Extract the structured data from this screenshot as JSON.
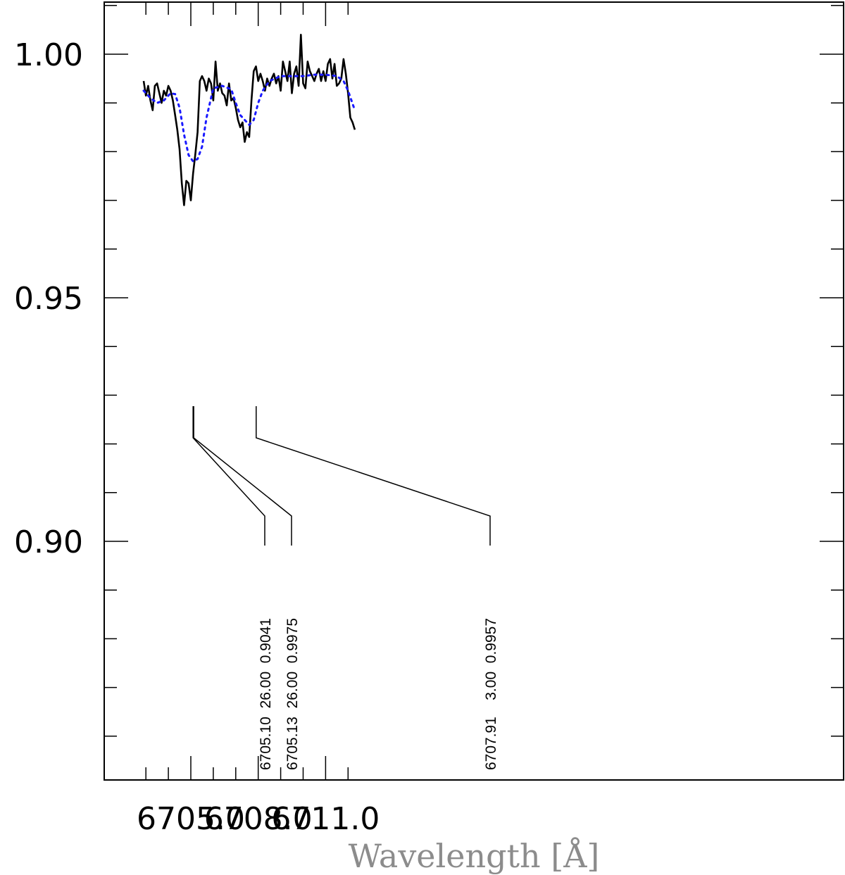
{
  "chart_data": {
    "type": "line",
    "title": "",
    "xlabel": "Wavelength [Å]",
    "ylabel": "",
    "xlim": [
      6702.6,
      6712.6
    ],
    "ylim": [
      0.854,
      1.0105
    ],
    "xticks": [
      6705.0,
      6708.0,
      6711.0
    ],
    "xtick_labels": [
      "6705.0",
      "6708.0",
      "6711.0"
    ],
    "yticks": [
      0.9,
      0.95,
      1.0
    ],
    "ytick_labels": [
      "0.90",
      "0.95",
      "1.00"
    ],
    "grid": false,
    "series": [
      {
        "style": "solid",
        "color": "#000000",
        "x": [
          6702.9,
          6703.0,
          6703.1,
          6703.2,
          6703.3,
          6703.4,
          6703.5,
          6703.6,
          6703.7,
          6703.8,
          6703.9,
          6704.0,
          6704.1,
          6704.2,
          6704.3,
          6704.4,
          6704.5,
          6704.6,
          6704.7,
          6704.8,
          6704.9,
          6705.0,
          6705.1,
          6705.2,
          6705.3,
          6705.4,
          6705.5,
          6705.6,
          6705.7,
          6705.8,
          6705.9,
          6706.0,
          6706.1,
          6706.2,
          6706.3,
          6706.4,
          6706.5,
          6706.6,
          6706.7,
          6706.8,
          6706.9,
          6707.0,
          6707.1,
          6707.2,
          6707.3,
          6707.4,
          6707.5,
          6707.6,
          6707.7,
          6707.8,
          6707.9,
          6708.0,
          6708.1,
          6708.2,
          6708.3,
          6708.4,
          6708.5,
          6708.6,
          6708.7,
          6708.8,
          6708.9,
          6709.0,
          6709.1,
          6709.2,
          6709.3,
          6709.4,
          6709.5,
          6709.6,
          6709.7,
          6709.8,
          6709.9,
          6710.0,
          6710.1,
          6710.2,
          6710.3,
          6710.4,
          6710.5,
          6710.6,
          6710.7,
          6710.8,
          6710.9,
          6711.0,
          6711.1,
          6711.2,
          6711.3,
          6711.4,
          6711.5,
          6711.6,
          6711.7,
          6711.8,
          6711.9,
          6712.0,
          6712.1,
          6712.2,
          6712.3
        ],
        "y": [
          0.9945,
          0.9915,
          0.9935,
          0.9905,
          0.9885,
          0.9935,
          0.994,
          0.992,
          0.99,
          0.9925,
          0.9915,
          0.9935,
          0.9925,
          0.9905,
          0.9875,
          0.9845,
          0.9805,
          0.9735,
          0.969,
          0.974,
          0.9735,
          0.97,
          0.9755,
          0.9795,
          0.984,
          0.9945,
          0.9955,
          0.9945,
          0.9925,
          0.995,
          0.994,
          0.9905,
          0.9985,
          0.9925,
          0.994,
          0.992,
          0.9915,
          0.9895,
          0.994,
          0.9905,
          0.991,
          0.989,
          0.9865,
          0.985,
          0.986,
          0.982,
          0.984,
          0.983,
          0.9905,
          0.9965,
          0.9975,
          0.9945,
          0.996,
          0.9945,
          0.9925,
          0.995,
          0.9935,
          0.995,
          0.996,
          0.994,
          0.9955,
          0.9925,
          0.9985,
          0.9965,
          0.9945,
          0.9985,
          0.992,
          0.996,
          0.9975,
          0.9935,
          1.004,
          0.994,
          0.993,
          0.9985,
          0.9965,
          0.9955,
          0.9945,
          0.996,
          0.997,
          0.9945,
          0.9965,
          0.9945,
          0.998,
          0.999,
          0.995,
          0.998,
          0.9935,
          0.994,
          0.995,
          0.999,
          0.996,
          0.992,
          0.987,
          0.986,
          0.9845
        ]
      },
      {
        "style": "dotted",
        "color": "#1a1aff",
        "x": [
          6702.9,
          6703.2,
          6703.5,
          6703.8,
          6704.1,
          6704.3,
          6704.5,
          6704.7,
          6704.9,
          6705.1,
          6705.3,
          6705.5,
          6705.7,
          6706.0,
          6706.4,
          6706.8,
          6707.0,
          6707.2,
          6707.4,
          6707.6,
          6707.8,
          6708.0,
          6708.2,
          6708.5,
          6709.0,
          6709.5,
          6710.0,
          6710.5,
          6711.0,
          6711.5,
          6711.8,
          6712.0,
          6712.3
        ],
        "y": [
          0.9925,
          0.991,
          0.99,
          0.9905,
          0.992,
          0.9918,
          0.989,
          0.9835,
          0.9793,
          0.978,
          0.9785,
          0.981,
          0.987,
          0.993,
          0.9935,
          0.9928,
          0.99,
          0.9875,
          0.9865,
          0.9855,
          0.9865,
          0.99,
          0.9925,
          0.9945,
          0.9955,
          0.9955,
          0.9955,
          0.9958,
          0.9958,
          0.9955,
          0.9945,
          0.9925,
          0.9885
        ]
      }
    ],
    "line_ids": [
      {
        "wavelength": 6705.1,
        "label": "6705.10  26.00  0.9041"
      },
      {
        "wavelength": 6705.13,
        "label": "6705.13  26.00  0.9975"
      },
      {
        "wavelength": 6707.91,
        "label": "6707.91    3.00  0.9957"
      }
    ]
  }
}
